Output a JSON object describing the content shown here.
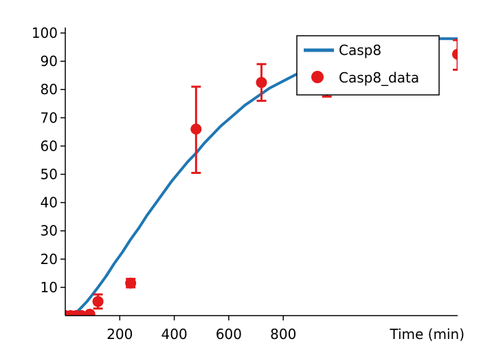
{
  "chart_data": {
    "type": "line",
    "title": "",
    "xlabel": "Time (min)",
    "ylabel": "",
    "xlim": [
      0,
      1440
    ],
    "ylim": [
      0,
      100
    ],
    "xticks": [
      200,
      400,
      600,
      800
    ],
    "yticks": [
      10,
      20,
      30,
      40,
      50,
      60,
      70,
      80,
      90,
      100
    ],
    "grid": false,
    "legend_position": "top-right",
    "series": [
      {
        "name": "Casp8",
        "kind": "line",
        "color": "#1f77b4",
        "x": [
          0,
          20,
          40,
          60,
          80,
          100,
          120,
          150,
          180,
          210,
          240,
          270,
          300,
          330,
          360,
          390,
          420,
          450,
          480,
          510,
          540,
          570,
          600,
          630,
          660,
          690,
          720,
          750,
          780,
          810,
          840,
          870,
          900,
          930,
          960,
          990,
          1020,
          1060,
          1100,
          1140,
          1180,
          1240,
          1300,
          1380,
          1440
        ],
        "y": [
          0,
          0,
          1,
          3,
          5,
          7.5,
          10,
          14,
          18.5,
          22.5,
          27,
          31,
          35.5,
          39.5,
          43.5,
          47.5,
          51,
          54.5,
          57.5,
          61,
          64,
          67,
          69.5,
          72,
          74.5,
          76.5,
          78.5,
          80.5,
          82,
          83.5,
          85,
          86.5,
          88,
          89,
          90.5,
          91.5,
          92.5,
          93.5,
          94.5,
          95.5,
          96.3,
          97.3,
          97.8,
          98,
          98
        ]
      },
      {
        "name": "Casp8_data",
        "kind": "scatter",
        "color": "#e31a1c",
        "x": [
          0,
          20,
          40,
          60,
          90,
          120,
          240,
          480,
          720,
          960,
          1440
        ],
        "y": [
          0,
          0,
          0,
          0,
          0.5,
          5,
          11.5,
          66,
          82.5,
          80,
          92.5
        ],
        "err_low": [
          0,
          0,
          0,
          0,
          0.5,
          2.5,
          1.5,
          15.5,
          6.5,
          2.5,
          5.5
        ],
        "err_high": [
          0,
          0,
          0,
          0,
          0.5,
          2.5,
          1.5,
          15,
          6.5,
          2.5,
          5
        ]
      }
    ]
  }
}
